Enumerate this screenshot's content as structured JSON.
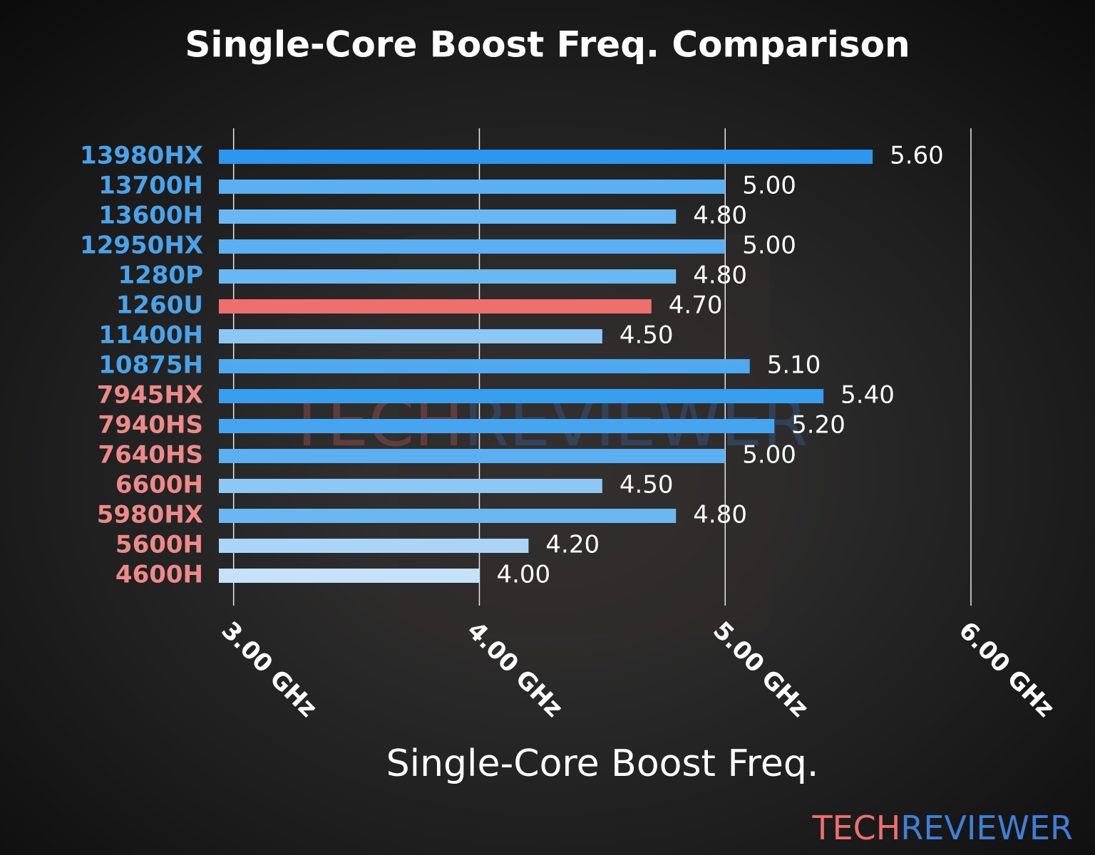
{
  "chart_data": {
    "type": "bar",
    "orientation": "horizontal",
    "title": "Single-Core Boost Freq. Comparison",
    "x_label": "Single-Core Boost Freq.",
    "categories": [
      "13980HX",
      "13700H",
      "13600H",
      "12950HX",
      "1280P",
      "1260U",
      "11400H",
      "10875H",
      "7945HX",
      "7940HS",
      "7640HS",
      "6600H",
      "5980HX",
      "5600H",
      "4600H"
    ],
    "category_colors": [
      "#4aa3ea",
      "#4aa3ea",
      "#4aa3ea",
      "#4aa3ea",
      "#4aa3ea",
      "#4aa3ea",
      "#4aa3ea",
      "#4aa3ea",
      "#ee8a88",
      "#ee8a88",
      "#ee8a88",
      "#ee8a88",
      "#ee8a88",
      "#ee8a88",
      "#ee8a88"
    ],
    "values": [
      5.6,
      5.0,
      4.8,
      5.0,
      4.8,
      4.7,
      4.5,
      5.1,
      5.4,
      5.2,
      5.0,
      4.5,
      4.8,
      4.2,
      4.0
    ],
    "value_labels": [
      "5.60",
      "5.00",
      "4.80",
      "5.00",
      "4.80",
      "4.70",
      "4.50",
      "5.10",
      "5.40",
      "5.20",
      "5.00",
      "4.50",
      "4.80",
      "4.20",
      "4.00"
    ],
    "colors": [
      "#2b97ef",
      "#5ab0f2",
      "#6ab8f3",
      "#5ab0f2",
      "#6ab8f3",
      "#ef6f6c",
      "#8cc7f5",
      "#4ea9f1",
      "#379ff0",
      "#46a5f1",
      "#5ab0f2",
      "#8cc7f5",
      "#6ab8f3",
      "#aad5f7",
      "#c4e2f9"
    ],
    "xlim": [
      2.94,
      6.0
    ],
    "xticks": [
      {
        "value": 3,
        "label": "3.00 GHz"
      },
      {
        "value": 4,
        "label": "4.00 GHz"
      },
      {
        "value": 5,
        "label": "5.00 GHz"
      },
      {
        "value": 6,
        "label": "6.00 GHz"
      }
    ],
    "grid": true,
    "brand": {
      "left": "TECH",
      "right": "REVIEWER"
    }
  }
}
